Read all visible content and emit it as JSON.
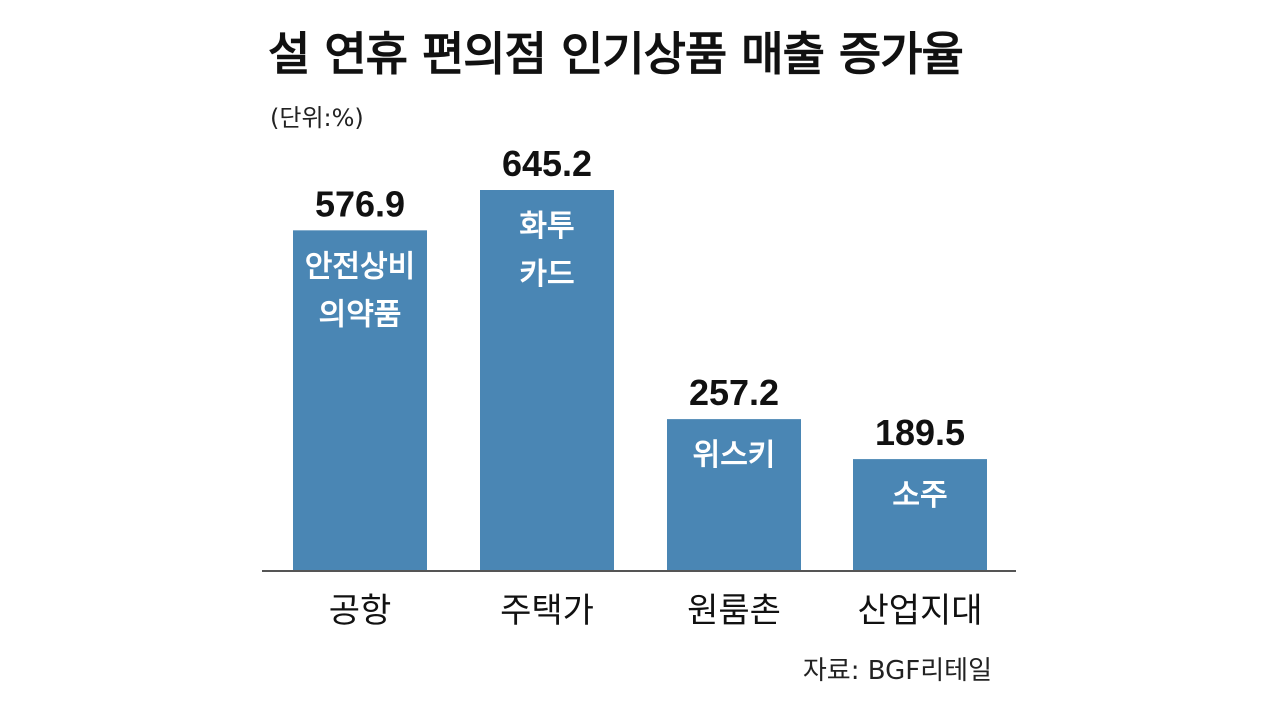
{
  "header": {
    "title": "설 연휴 편의점 인기상품 매출 증가율",
    "unit": "(단위:%)"
  },
  "footer": {
    "source": "자료: BGF리테일"
  },
  "colors": {
    "bar": "#4a86b4",
    "baseline": "#555555"
  },
  "chart_data": {
    "type": "bar",
    "categories": [
      "공항",
      "주택가",
      "원룸촌",
      "산업지대"
    ],
    "values": [
      576.9,
      645.2,
      257.2,
      189.5
    ],
    "value_labels": [
      "576.9",
      "645.2",
      "257.2",
      "189.5"
    ],
    "bar_labels": [
      [
        "안전상비",
        "의약품"
      ],
      [
        "화투",
        "카드"
      ],
      [
        "위스키"
      ],
      [
        "소주"
      ]
    ],
    "ylim": [
      0,
      700
    ],
    "grid": false,
    "legend": "none"
  }
}
